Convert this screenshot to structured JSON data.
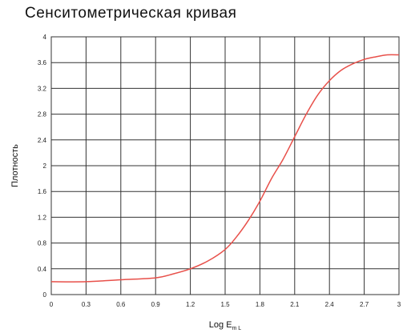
{
  "chart_data": {
    "type": "line",
    "title": "Сенситометрическая кривая",
    "xlabel": "Log E",
    "xlabel_subscript": "m L",
    "ylabel": "Плотность",
    "xlim": [
      0,
      3
    ],
    "ylim": [
      0,
      4
    ],
    "x_ticks": [
      0,
      0.3,
      0.6,
      0.9,
      1.2,
      1.5,
      1.8,
      2.1,
      2.4,
      2.7,
      3
    ],
    "x_tick_labels": [
      "0",
      "0.3",
      "0.6",
      "0.9",
      "1.2",
      "1.5",
      "1.8",
      "2.1",
      "2.4",
      "2.7",
      "3"
    ],
    "y_ticks": [
      0,
      0.4,
      0.8,
      1.2,
      1.6,
      2,
      2.4,
      2.8,
      3.2,
      3.6,
      4
    ],
    "y_tick_labels": [
      "0",
      "0.4",
      "0.8",
      "1.2",
      "1.6",
      "2",
      "2.4",
      "2.8",
      "3.2",
      "3.6",
      "4"
    ],
    "grid": true,
    "grid_color": "#333333",
    "series": [
      {
        "color": "#e8504a",
        "x": [
          0,
          0.3,
          0.6,
          0.9,
          1.05,
          1.2,
          1.35,
          1.5,
          1.6,
          1.7,
          1.8,
          1.9,
          2.0,
          2.1,
          2.2,
          2.3,
          2.4,
          2.5,
          2.6,
          2.7,
          2.8,
          2.9,
          3.0
        ],
        "y": [
          0.2,
          0.2,
          0.23,
          0.26,
          0.32,
          0.4,
          0.52,
          0.7,
          0.9,
          1.15,
          1.45,
          1.8,
          2.1,
          2.45,
          2.8,
          3.1,
          3.32,
          3.48,
          3.58,
          3.65,
          3.69,
          3.72,
          3.72
        ]
      }
    ]
  }
}
